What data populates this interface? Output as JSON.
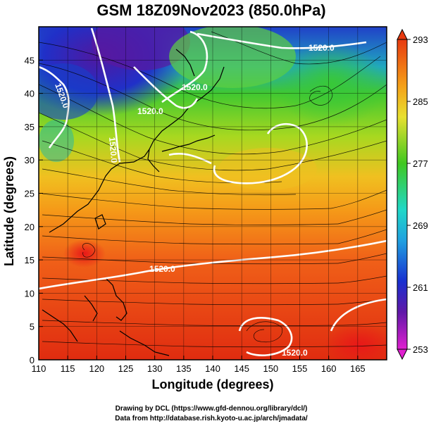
{
  "title": "GSM 18Z09Nov2023 (850.0hPa)",
  "xlabel": "Longitude (degrees)",
  "ylabel": "Latitude  (degrees)",
  "credit_line1": "Drawing by DCL (https://www.gfd-dennou.org/library/dcl/)",
  "credit_line2": "Data from http://database.rish.kyoto-u.ac.jp/arch/jmadata/",
  "chart_data": {
    "type": "heatmap",
    "title": "GSM 18Z09Nov2023 (850.0hPa)",
    "xlabel": "Longitude (degrees)",
    "ylabel": "Latitude  (degrees)",
    "xlim": [
      110,
      170
    ],
    "ylim": [
      0,
      50
    ],
    "x_ticks": [
      "110",
      "115",
      "120",
      "125",
      "130",
      "135",
      "140",
      "145",
      "150",
      "155",
      "160",
      "165"
    ],
    "y_ticks": [
      "0",
      "5",
      "10",
      "15",
      "20",
      "25",
      "30",
      "35",
      "40",
      "45"
    ],
    "grid": true,
    "colorbar": {
      "min": 253,
      "max": 293,
      "ticks": [
        "253",
        "261",
        "269",
        "277",
        "285",
        "293"
      ],
      "placement": "right"
    },
    "contour_labels": [
      "1520.0",
      "1520.0",
      "1520.0",
      "1520.0",
      "1520.0",
      "1520.0",
      "1520.0"
    ],
    "colors": {
      "warm": "#e83a10",
      "orange": "#f59a18",
      "yellow": "#e8e830",
      "green": "#40c820",
      "cyan": "#20d8c8",
      "blue": "#1830d0",
      "purple": "#6018a8",
      "magenta": "#e020d0",
      "contour": "#ffffff",
      "streamline": "#000000"
    }
  }
}
